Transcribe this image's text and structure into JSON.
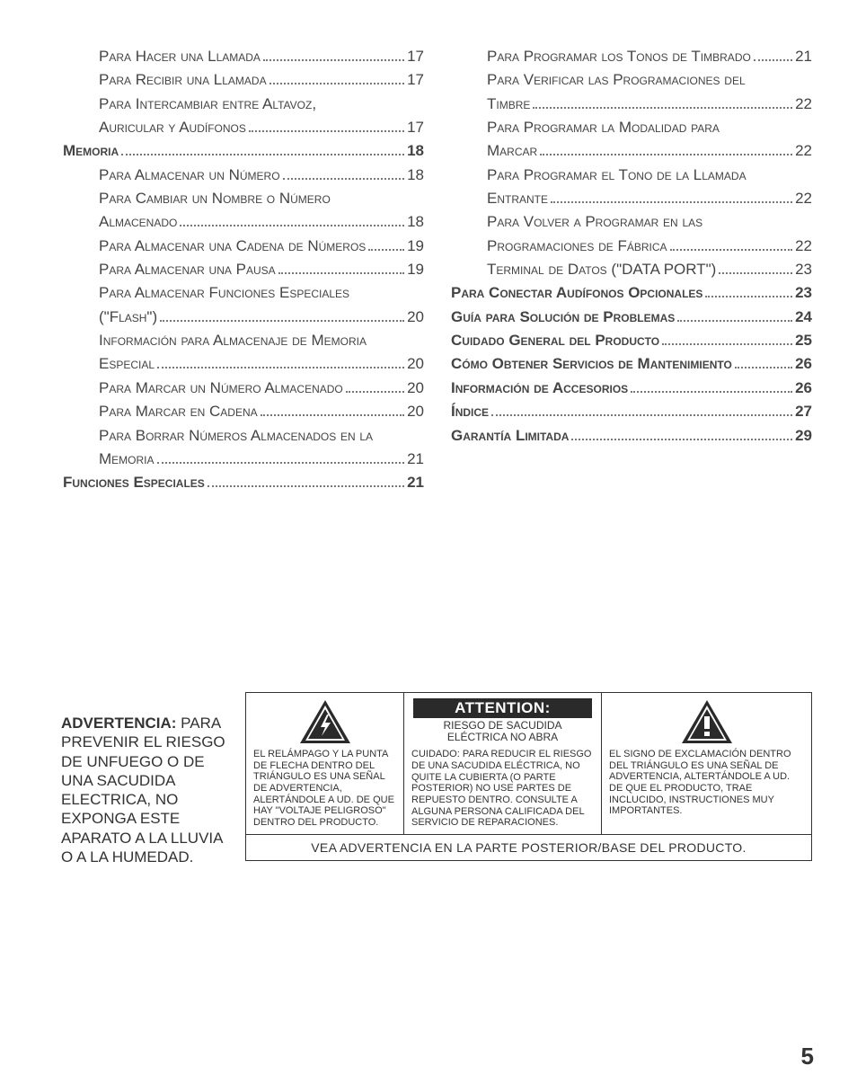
{
  "toc": {
    "left": [
      {
        "text": "Para Hacer una Llamada",
        "page": "17",
        "bold": false,
        "indent": true
      },
      {
        "text": "Para Recibir una Llamada",
        "page": "17",
        "bold": false,
        "indent": true
      },
      {
        "text": "Para Intercambiar entre Altavoz,",
        "page": "",
        "bold": false,
        "indent": true
      },
      {
        "text": "Auricular y Audífonos",
        "page": "17",
        "bold": false,
        "indent": true
      },
      {
        "text": "Memoria",
        "page": "18",
        "bold": true,
        "indent": false
      },
      {
        "text": "Para Almacenar un Número",
        "page": "18",
        "bold": false,
        "indent": true
      },
      {
        "text": "Para Cambiar un Nombre o Número",
        "page": "",
        "bold": false,
        "indent": true
      },
      {
        "text": "Almacenado",
        "page": "18",
        "bold": false,
        "indent": true
      },
      {
        "text": "Para Almacenar una Cadena de Números",
        "page": "19",
        "bold": false,
        "indent": true
      },
      {
        "text": "Para Almacenar una Pausa",
        "page": "19",
        "bold": false,
        "indent": true
      },
      {
        "text": "Para Almacenar Funciones Especiales",
        "page": "",
        "bold": false,
        "indent": true
      },
      {
        "text": "(\"Flash\")",
        "page": "20",
        "bold": false,
        "indent": true
      },
      {
        "text": "Información para Almacenaje de Memoria",
        "page": "",
        "bold": false,
        "indent": true
      },
      {
        "text": "Especial",
        "page": "20",
        "bold": false,
        "indent": true
      },
      {
        "text": "Para Marcar un Número Almacenado",
        "page": "20",
        "bold": false,
        "indent": true
      },
      {
        "text": "Para Marcar en Cadena",
        "page": "20",
        "bold": false,
        "indent": true
      },
      {
        "text": "Para Borrar Números Almacenados en la",
        "page": "",
        "bold": false,
        "indent": true
      },
      {
        "text": "Memoria",
        "page": "21",
        "bold": false,
        "indent": true
      },
      {
        "text": "Funciones Especiales",
        "page": "21",
        "bold": true,
        "indent": false
      }
    ],
    "right": [
      {
        "text": "Para Programar los Tonos de Timbrado",
        "page": "21",
        "bold": false,
        "indent": true
      },
      {
        "text": "Para Verificar las Programaciones del",
        "page": "",
        "bold": false,
        "indent": true
      },
      {
        "text": "Timbre",
        "page": "22",
        "bold": false,
        "indent": true
      },
      {
        "text": "Para Programar la Modalidad para",
        "page": "",
        "bold": false,
        "indent": true
      },
      {
        "text": "Marcar",
        "page": "22",
        "bold": false,
        "indent": true
      },
      {
        "text": "Para Programar el Tono de la Llamada",
        "page": "",
        "bold": false,
        "indent": true
      },
      {
        "text": "Entrante",
        "page": "22",
        "bold": false,
        "indent": true
      },
      {
        "text": "Para Volver a Programar en las",
        "page": "",
        "bold": false,
        "indent": true
      },
      {
        "text": "Programaciones de Fábrica",
        "page": "22",
        "bold": false,
        "indent": true
      },
      {
        "text": "Terminal de Datos (\"DATA PORT\")",
        "page": "23",
        "bold": false,
        "indent": true
      },
      {
        "text": "Para Conectar Audífonos Opcionales",
        "page": "23",
        "bold": true,
        "indent": false
      },
      {
        "text": "Guía para Solución de Problemas",
        "page": "24",
        "bold": true,
        "indent": false
      },
      {
        "text": "Cuidado General del Producto",
        "page": "25",
        "bold": true,
        "indent": false
      },
      {
        "text": "Cómo Obtener Servicios de Mantenimiento",
        "page": "26",
        "bold": true,
        "indent": false
      },
      {
        "text": "Información de Accesorios",
        "page": "26",
        "bold": true,
        "indent": false
      },
      {
        "text": "Índice",
        "page": "27",
        "bold": true,
        "indent": false
      },
      {
        "text": "Garantía Limitada",
        "page": "29",
        "bold": true,
        "indent": false
      }
    ]
  },
  "warning": {
    "left_header": "ADVERTENCIA:",
    "left_body": " PARA PREVENIR EL RIESGO DE UNFUEGO O DE UNA SACUDIDA ELECTRICA, NO EXPONGA ESTE APARATO A LA LLUVIA O A LA HUMEDAD.",
    "bolt_text": "EL RELÁMPAGO Y LA PUNTA DE FLECHA DENTRO DEL TRIÁNGULO ES UNA SEÑAL DE ADVERTENCIA, ALERTÁNDOLE A UD. DE QUE HAY \"VOLTAJE PELIGROSO\" DENTRO DEL PRODUCTO.",
    "attention_title": "ATTENTION:",
    "attention_sub1": "RIESGO DE SACUDIDA",
    "attention_sub2": "ELÉCTRICA NO ABRA",
    "attention_body": "CUIDADO: PARA REDUCIR EL RIESGO DE UNA SACUDIDA ELÉCTRICA, NO QUITE LA CUBIERTA (O PARTE POSTERIOR) NO USE PARTES DE REPUESTO DENTRO. CONSULTE A ALGUNA PERSONA CALIFICADA DEL SERVICIO DE REPARACIONES.",
    "exclaim_text": "EL SIGNO DE EXCLAMACIÓN DENTRO DEL TRIÁNGULO ES UNA SEÑAL DE ADVERTENCIA, ALTERTÁNDOLE A UD. DE QUE EL PRODUCTO, TRAE INCLUCIDO, INSTRUCTIONES MUY IMPORTANTES.",
    "bottom": "VEA ADVERTENCIA EN LA PARTE POSTERIOR/BASE DEL PRODUCTO."
  },
  "page_number": "5",
  "colors": {
    "text": "#333333",
    "border": "#333333",
    "banner_bg": "#2a2a2a"
  }
}
